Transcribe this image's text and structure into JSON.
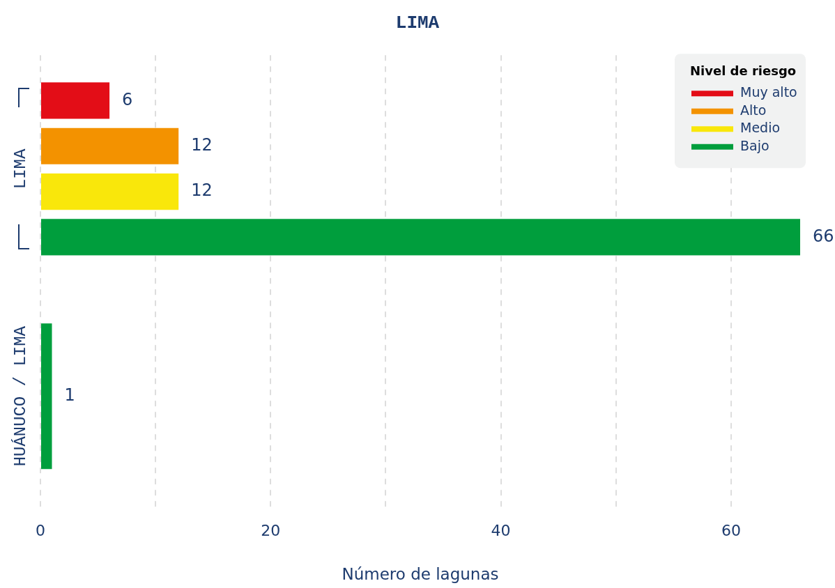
{
  "chart_data": {
    "type": "bar",
    "orientation": "horizontal",
    "title": "LIMA",
    "xlabel": "Número de lagunas",
    "legend_title": "Nivel de riesgo",
    "categories": [
      "LIMA",
      "HUÁNUCO / LIMA"
    ],
    "series": [
      {
        "name": "Muy alto",
        "color": "#e30d17",
        "values": [
          6,
          null
        ]
      },
      {
        "name": "Alto",
        "color": "#f39200",
        "values": [
          12,
          null
        ]
      },
      {
        "name": "Medio",
        "color": "#f9e70b",
        "values": [
          12,
          null
        ]
      },
      {
        "name": "Bajo",
        "color": "#009e3d",
        "values": [
          66,
          1
        ]
      }
    ],
    "xlim": [
      0,
      66
    ],
    "xticks": [
      0,
      {
        "value": 10,
        "label": null
      },
      20,
      {
        "value": 30,
        "label": null
      },
      40,
      {
        "value": 50,
        "label": null
      },
      60
    ],
    "grid": "x",
    "legend": "top right",
    "data_labels": true
  }
}
